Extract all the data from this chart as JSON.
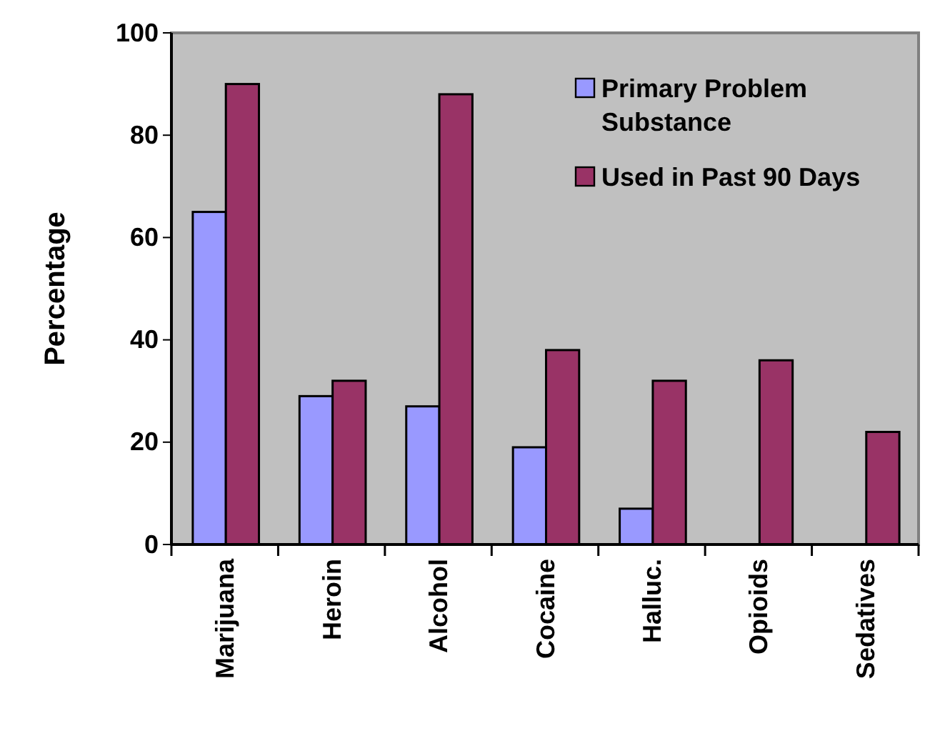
{
  "chart_data": {
    "type": "bar",
    "ylabel": "Percentage",
    "categories": [
      "Marijuana",
      "Heroin",
      "Alcohol",
      "Cocaine",
      "Halluc.",
      "Opioids",
      "Sedatives"
    ],
    "series": [
      {
        "name": "Primary Problem Substance",
        "color": "#9999ff",
        "values": [
          65,
          29,
          27,
          19,
          7,
          null,
          null
        ]
      },
      {
        "name": "Used in Past 90 Days",
        "color": "#993366",
        "values": [
          90,
          32,
          88,
          38,
          32,
          36,
          22
        ]
      }
    ],
    "ylim": [
      0,
      100
    ],
    "yticks": [
      0,
      20,
      40,
      60,
      80,
      100
    ],
    "grid": false,
    "legend": "top right"
  }
}
